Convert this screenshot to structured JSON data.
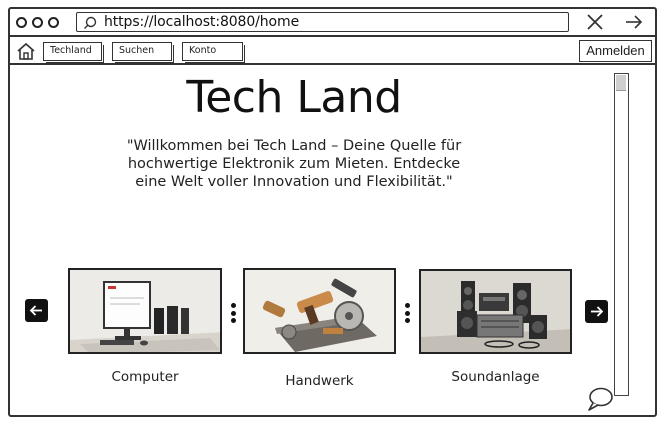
{
  "browser": {
    "url": "https://localhost:8080/home"
  },
  "nav": {
    "items": [
      {
        "label": "Techland"
      },
      {
        "label": "Suchen"
      },
      {
        "label": "Konto"
      }
    ],
    "login_label": "Anmelden"
  },
  "hero": {
    "title": "Tech Land",
    "tagline": "\"Willkommen bei Tech Land – Deine Quelle für hochwertige Elektronik zum Mieten. Entdecke eine Welt voller Innovation und Flexibilität.\""
  },
  "categories": [
    {
      "label": "Computer"
    },
    {
      "label": "Handwerk"
    },
    {
      "label": "Soundanlage"
    }
  ]
}
